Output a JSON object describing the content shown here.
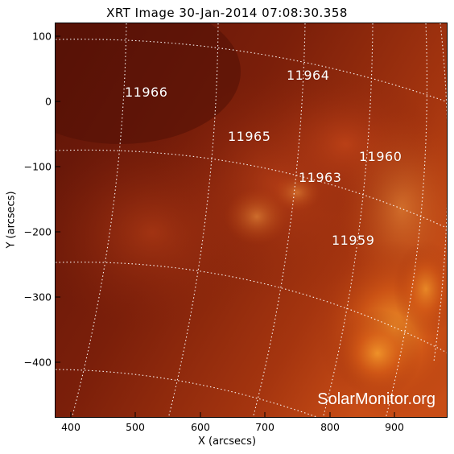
{
  "title": "XRT Image 30-Jan-2014 07:08:30.358",
  "x_axis": {
    "label": "X (arcsecs)",
    "ticks": [
      "400",
      "500",
      "600",
      "700",
      "800",
      "900"
    ]
  },
  "y_axis": {
    "label": "Y (arcsecs)",
    "ticks": [
      "100",
      "0",
      "−100",
      "−200",
      "−300",
      "−400"
    ]
  },
  "regions": [
    {
      "number": "11966"
    },
    {
      "number": "11964"
    },
    {
      "number": "11965"
    },
    {
      "number": "11960"
    },
    {
      "number": "11963"
    },
    {
      "number": "11959"
    }
  ],
  "watermark": "SolarMonitor.org",
  "colors": {
    "background": "#6a1608",
    "bright_region": "#e07a1e",
    "grid": "#ffffff"
  }
}
